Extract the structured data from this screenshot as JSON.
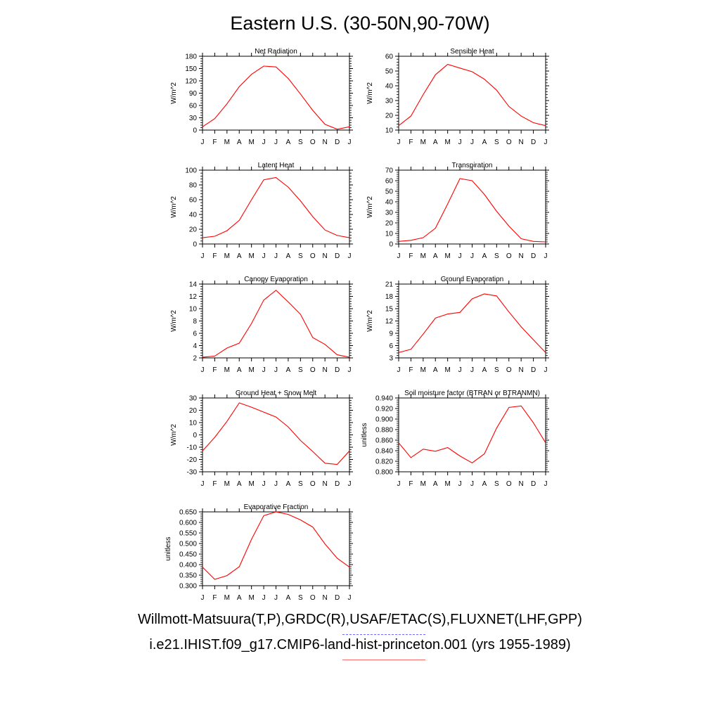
{
  "title": "Eastern U.S. (30-50N,90-70W)",
  "legend": {
    "obs_label": "Willmott-Matsuura(T,P),GRDC(R),USAF/ETAC(S),FLUXNET(LHF,GPP)",
    "obs_color": "#6b6bff",
    "model_label": "i.e21.IHIST.f09_g17.CMIP6-land-hist-princeton.001 (yrs 1955-1989)",
    "model_color": "#ff0000"
  },
  "chart_data": [
    {
      "type": "line",
      "title": "Net Radiation",
      "ylabel": "W/m^2",
      "ylim": [
        0,
        180
      ],
      "yticks": [
        "0",
        "30",
        "60",
        "90",
        "120",
        "150",
        "180"
      ],
      "categories": [
        "J",
        "F",
        "M",
        "A",
        "M",
        "J",
        "J",
        "A",
        "S",
        "O",
        "N",
        "D",
        "J"
      ],
      "series": [
        {
          "values": [
            8,
            28,
            64,
            106,
            136,
            156,
            154,
            126,
            88,
            48,
            14,
            2,
            8
          ]
        }
      ]
    },
    {
      "type": "line",
      "title": "Sensible Heat",
      "ylabel": "W/m^2",
      "ylim": [
        10,
        60
      ],
      "yticks": [
        "10",
        "20",
        "30",
        "40",
        "50",
        "60"
      ],
      "categories": [
        "J",
        "F",
        "M",
        "A",
        "M",
        "J",
        "J",
        "A",
        "S",
        "O",
        "N",
        "D",
        "J"
      ],
      "series": [
        {
          "values": [
            13,
            19.5,
            34,
            47.5,
            54.5,
            52,
            49.5,
            44.5,
            37,
            26,
            19.5,
            15,
            13
          ]
        }
      ]
    },
    {
      "type": "line",
      "title": "Latent Heat",
      "ylabel": "W/m^2",
      "ylim": [
        0,
        100
      ],
      "yticks": [
        "0",
        "20",
        "40",
        "60",
        "80",
        "100"
      ],
      "categories": [
        "J",
        "F",
        "M",
        "A",
        "M",
        "J",
        "J",
        "A",
        "S",
        "O",
        "N",
        "D",
        "J"
      ],
      "series": [
        {
          "values": [
            8.5,
            10.5,
            18,
            32,
            60,
            87,
            90,
            77,
            58.5,
            37,
            19,
            11.5,
            8.5
          ]
        }
      ]
    },
    {
      "type": "line",
      "title": "Transpiration",
      "ylabel": "W/m^2",
      "ylim": [
        0,
        70
      ],
      "yticks": [
        "0",
        "10",
        "20",
        "30",
        "40",
        "50",
        "60",
        "70"
      ],
      "categories": [
        "J",
        "F",
        "M",
        "A",
        "M",
        "J",
        "J",
        "A",
        "S",
        "O",
        "N",
        "D",
        "J"
      ],
      "series": [
        {
          "values": [
            2.5,
            3.5,
            6,
            15,
            38,
            62,
            60,
            47,
            31,
            17,
            5,
            2.5,
            2
          ]
        }
      ]
    },
    {
      "type": "line",
      "title": "Canopy Evaporation",
      "ylabel": "W/m^2",
      "ylim": [
        2,
        14
      ],
      "yticks": [
        "2",
        "4",
        "6",
        "8",
        "10",
        "12",
        "14"
      ],
      "categories": [
        "J",
        "F",
        "M",
        "A",
        "M",
        "J",
        "J",
        "A",
        "S",
        "O",
        "N",
        "D",
        "J"
      ],
      "series": [
        {
          "values": [
            2.1,
            2.3,
            3.6,
            4.4,
            7.6,
            11.4,
            13,
            11.1,
            9.1,
            5.3,
            4.2,
            2.5,
            2.1
          ]
        }
      ]
    },
    {
      "type": "line",
      "title": "Ground Evaporation",
      "ylabel": "W/m^2",
      "ylim": [
        3,
        21
      ],
      "yticks": [
        "3",
        "6",
        "9",
        "12",
        "15",
        "18",
        "21"
      ],
      "categories": [
        "J",
        "F",
        "M",
        "A",
        "M",
        "J",
        "J",
        "A",
        "S",
        "O",
        "N",
        "D",
        "J"
      ],
      "series": [
        {
          "values": [
            4.3,
            5.1,
            8.8,
            12.7,
            13.7,
            14.1,
            17.4,
            18.6,
            18.1,
            14.2,
            10.6,
            7.4,
            4.3
          ]
        }
      ]
    },
    {
      "type": "line",
      "title": "Ground Heat + Snow Melt",
      "ylabel": "W/m^2",
      "ylim": [
        -30,
        30
      ],
      "yticks": [
        "-30",
        "-20",
        "-10",
        "0",
        "10",
        "20",
        "30"
      ],
      "categories": [
        "J",
        "F",
        "M",
        "A",
        "M",
        "J",
        "J",
        "A",
        "S",
        "O",
        "N",
        "D",
        "J"
      ],
      "series": [
        {
          "values": [
            -13,
            -2,
            11,
            26,
            22.5,
            18.5,
            14.5,
            6.5,
            -4.5,
            -13.5,
            -23,
            -24,
            -13
          ]
        }
      ]
    },
    {
      "type": "line",
      "title": "Soil moisture factor (BTRAN or BTRANMN)",
      "ylabel": "unitless",
      "ylim": [
        0.8,
        0.94
      ],
      "yticks": [
        "0.800",
        "0.820",
        "0.840",
        "0.860",
        "0.880",
        "0.900",
        "0.920",
        "0.940"
      ],
      "categories": [
        "J",
        "F",
        "M",
        "A",
        "M",
        "J",
        "J",
        "A",
        "S",
        "O",
        "N",
        "D",
        "J"
      ],
      "series": [
        {
          "values": [
            0.855,
            0.827,
            0.843,
            0.839,
            0.846,
            0.83,
            0.817,
            0.834,
            0.883,
            0.922,
            0.925,
            0.893,
            0.855
          ]
        }
      ]
    },
    {
      "type": "line",
      "title": "Evaporative Fraction",
      "ylabel": "unitless",
      "ylim": [
        0.3,
        0.65
      ],
      "yticks": [
        "0.300",
        "0.350",
        "0.400",
        "0.450",
        "0.500",
        "0.550",
        "0.600",
        "0.650"
      ],
      "categories": [
        "J",
        "F",
        "M",
        "A",
        "M",
        "J",
        "J",
        "A",
        "S",
        "O",
        "N",
        "D",
        "J"
      ],
      "series": [
        {
          "values": [
            0.388,
            0.33,
            0.348,
            0.39,
            0.52,
            0.632,
            0.65,
            0.638,
            0.612,
            0.578,
            0.498,
            0.43,
            0.388
          ]
        }
      ]
    }
  ]
}
